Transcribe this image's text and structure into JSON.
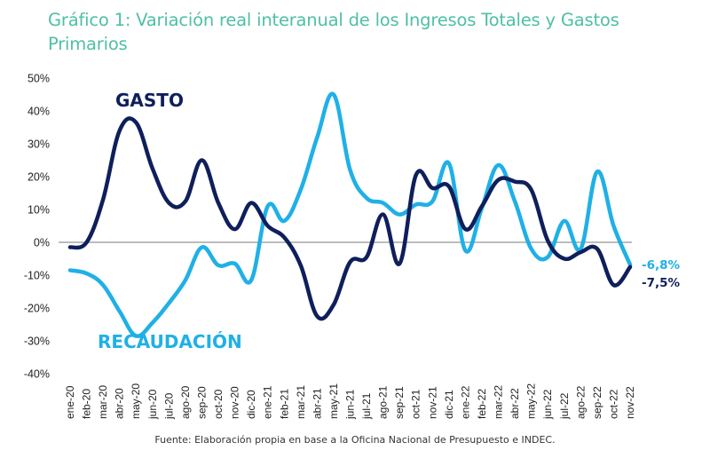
{
  "title": "Gráfico 1: Variación real interanual de los Ingresos Totales y Gastos Primarios",
  "footer": "Fuente: Elaboración propia en base a la Oficina Nacional de Presupuesto e INDEC.",
  "colors": {
    "title": "#4fbfa5",
    "gasto": "#0f1f5c",
    "recaudacion": "#1fb0e6",
    "zero_line": "#a6a6a6"
  },
  "chart_data": {
    "type": "line",
    "title": "Gráfico 1: Variación real interanual de los Ingresos Totales y Gastos Primarios",
    "xlabel": "",
    "ylabel": "",
    "ylim": [
      -40,
      50
    ],
    "yticks": [
      "50%",
      "40%",
      "30%",
      "20%",
      "10%",
      "0%",
      "-10%",
      "-20%",
      "-30%",
      "-40%"
    ],
    "ytick_values": [
      50,
      40,
      30,
      20,
      10,
      0,
      -10,
      -20,
      -30,
      -40
    ],
    "grid": false,
    "zero_line": true,
    "categories": [
      "ene-20",
      "feb-20",
      "mar-20",
      "abr-20",
      "may-20",
      "jun-20",
      "jul-20",
      "ago-20",
      "sep-20",
      "oct-20",
      "nov-20",
      "dic-20",
      "ene-21",
      "feb-21",
      "mar-21",
      "abr-21",
      "may-21",
      "jun-21",
      "jul-21",
      "ago-21",
      "sep-21",
      "oct-21",
      "nov-21",
      "dic-21",
      "ene-22",
      "feb-22",
      "mar-22",
      "abr-22",
      "may-22",
      "jun-22",
      "jul-22",
      "ago-22",
      "sep-22",
      "oct-22",
      "nov-22"
    ],
    "series": [
      {
        "name": "GASTO",
        "color": "#0f1f5c",
        "values": [
          -1.5,
          0.0,
          13.0,
          34.0,
          36.5,
          22.5,
          12.0,
          12.5,
          25.0,
          12.0,
          4.0,
          12.0,
          5.0,
          1.5,
          -7.0,
          -22.5,
          -19.0,
          -6.0,
          -4.5,
          8.5,
          -6.5,
          20.5,
          16.5,
          17.0,
          4.0,
          11.0,
          19.0,
          18.5,
          16.0,
          0.5,
          -5.0,
          -3.0,
          -2.0,
          -13.0,
          -7.5
        ],
        "end_label": "-7,5%"
      },
      {
        "name": "RECAUDACIÓN",
        "color": "#1fb0e6",
        "values": [
          -8.5,
          -9.5,
          -13.0,
          -21.0,
          -28.5,
          -24.5,
          -18.5,
          -11.5,
          -1.5,
          -7.0,
          -6.5,
          -11.5,
          11.0,
          6.5,
          16.0,
          32.0,
          45.0,
          22.0,
          13.5,
          12.0,
          8.5,
          11.5,
          12.5,
          24.0,
          -2.5,
          10.5,
          23.5,
          12.5,
          -2.0,
          -4.5,
          6.5,
          -2.0,
          21.5,
          5.0,
          -6.8
        ],
        "end_label": "-6,8%"
      }
    ],
    "annotations": [
      {
        "text": "GASTO",
        "series": "GASTO",
        "near": "abr-20"
      },
      {
        "text": "RECAUDACIÓN",
        "series": "RECAUDACIÓN",
        "near": "may-20"
      }
    ],
    "legend": "none"
  }
}
